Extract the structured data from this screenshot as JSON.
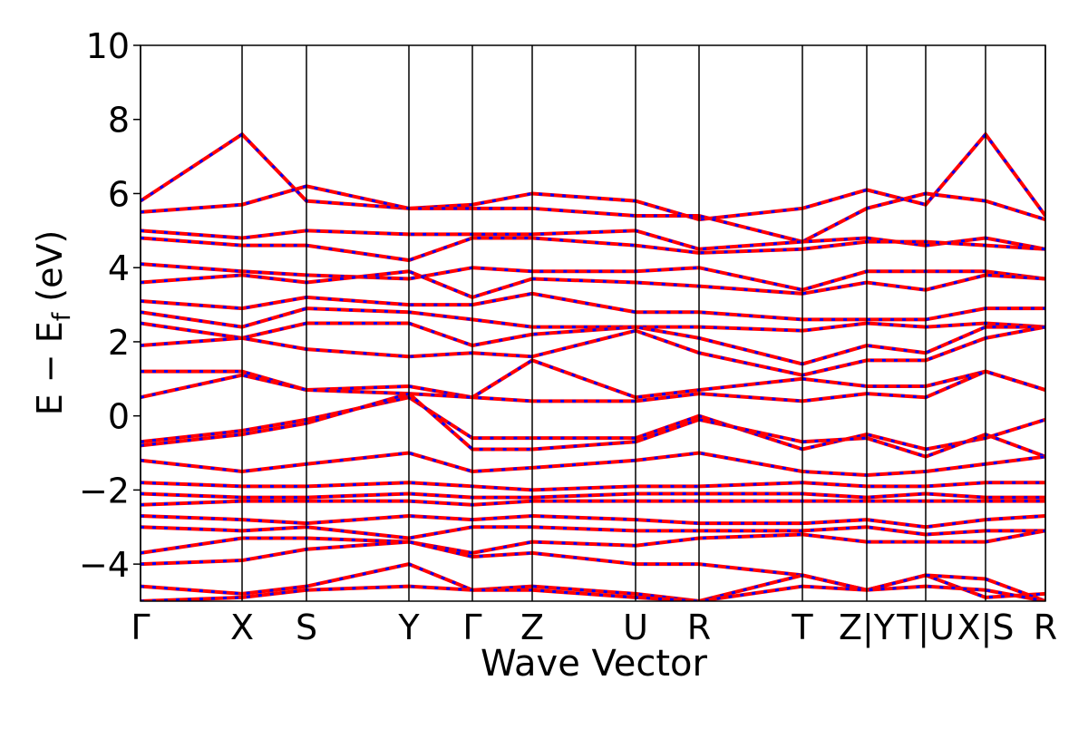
{
  "chart_data": {
    "type": "line",
    "xlabel": "Wave Vector",
    "ylabel_parts": [
      "E − E",
      "f",
      "(eV)"
    ],
    "ylim": [
      -5,
      10
    ],
    "yticks": [
      {
        "value": -4,
        "label": "−4"
      },
      {
        "value": -2,
        "label": "−2"
      },
      0,
      2,
      4,
      6,
      8,
      10
    ],
    "xlim": [
      0,
      9.98
    ],
    "xticks": [
      {
        "value": 0,
        "label": "Γ"
      },
      {
        "value": 1.12,
        "label": "X"
      },
      {
        "value": 1.83,
        "label": "S"
      },
      {
        "value": 2.96,
        "label": "Y"
      },
      {
        "value": 3.66,
        "label": "Γ"
      },
      {
        "value": 4.32,
        "label": "Z"
      },
      {
        "value": 5.46,
        "label": "U"
      },
      {
        "value": 6.16,
        "label": "R"
      },
      {
        "value": 7.3,
        "label": "T"
      },
      {
        "value": 8.01,
        "label": "Z|Y"
      },
      {
        "value": 8.66,
        "label": "T|U"
      },
      {
        "value": 9.32,
        "label": "X|S"
      },
      {
        "value": 9.98,
        "label": "R"
      }
    ],
    "x": [
      0,
      1.12,
      1.83,
      2.96,
      3.66,
      4.32,
      5.46,
      6.16,
      7.3,
      8.01,
      8.66,
      9.32,
      9.98
    ],
    "color": "#ff0000",
    "dash_color": "#0000ff",
    "bands": [
      {
        "values": [
          5.8,
          7.6,
          5.8,
          5.6,
          5.7,
          6.0,
          5.8,
          5.3,
          5.6,
          6.1,
          5.7,
          7.6,
          5.4
        ]
      },
      {
        "values": [
          5.5,
          5.7,
          6.2,
          5.6,
          5.6,
          5.6,
          5.4,
          5.4,
          4.7,
          5.6,
          6.0,
          5.8,
          5.3
        ]
      },
      {
        "values": [
          5.0,
          4.8,
          5.0,
          4.9,
          4.9,
          4.9,
          5.0,
          4.5,
          4.7,
          4.8,
          4.6,
          4.8,
          4.5
        ]
      },
      {
        "values": [
          4.8,
          4.6,
          4.6,
          4.2,
          4.8,
          4.8,
          4.6,
          4.4,
          4.5,
          4.7,
          4.7,
          4.6,
          4.5
        ]
      },
      {
        "values": [
          4.1,
          3.9,
          3.8,
          3.7,
          4.0,
          3.9,
          3.9,
          4.0,
          3.4,
          3.9,
          3.9,
          3.9,
          3.7
        ]
      },
      {
        "values": [
          3.6,
          3.8,
          3.6,
          3.9,
          3.2,
          3.7,
          3.6,
          3.5,
          3.3,
          3.6,
          3.4,
          3.8,
          3.7
        ]
      },
      {
        "values": [
          3.1,
          2.9,
          3.2,
          3.0,
          3.0,
          3.3,
          2.8,
          2.8,
          2.6,
          2.6,
          2.6,
          2.9,
          2.9
        ]
      },
      {
        "values": [
          2.8,
          2.4,
          2.9,
          2.8,
          2.6,
          2.4,
          2.4,
          2.4,
          2.3,
          2.5,
          2.4,
          2.5,
          2.4
        ]
      },
      {
        "values": [
          2.5,
          2.1,
          2.5,
          2.5,
          1.9,
          2.2,
          2.4,
          2.1,
          1.4,
          1.9,
          1.7,
          2.4,
          2.4
        ]
      },
      {
        "values": [
          1.9,
          2.1,
          1.8,
          1.6,
          1.7,
          1.6,
          2.3,
          1.7,
          1.1,
          1.5,
          1.5,
          2.1,
          2.4
        ]
      },
      {
        "values": [
          1.2,
          1.2,
          0.7,
          0.8,
          0.5,
          1.5,
          0.5,
          0.7,
          1.0,
          0.8,
          0.8,
          1.2,
          0.7
        ]
      },
      {
        "values": [
          0.5,
          1.1,
          0.7,
          0.6,
          0.5,
          0.4,
          0.4,
          0.6,
          0.4,
          0.6,
          0.5,
          1.2,
          0.7
        ]
      },
      {
        "values": [
          -0.7,
          -0.4,
          -0.1,
          0.5,
          -0.6,
          -0.6,
          -0.6,
          0.0,
          -0.9,
          -0.5,
          -0.9,
          -0.6,
          -0.1
        ]
      },
      {
        "values": [
          -0.8,
          -0.5,
          -0.2,
          0.6,
          -0.9,
          -0.9,
          -0.7,
          -0.1,
          -0.7,
          -0.6,
          -1.1,
          -0.5,
          -1.1
        ]
      },
      {
        "values": [
          -1.2,
          -1.5,
          -1.3,
          -1.0,
          -1.5,
          -1.4,
          -1.2,
          -1.0,
          -1.5,
          -1.6,
          -1.5,
          -1.3,
          -1.1
        ]
      },
      {
        "values": [
          -1.8,
          -1.9,
          -1.9,
          -1.8,
          -1.9,
          -2.0,
          -1.9,
          -1.9,
          -1.8,
          -1.9,
          -1.9,
          -1.8,
          -1.8
        ]
      },
      {
        "values": [
          -2.1,
          -2.2,
          -2.2,
          -2.1,
          -2.2,
          -2.2,
          -2.1,
          -2.1,
          -2.1,
          -2.2,
          -2.1,
          -2.2,
          -2.2
        ]
      },
      {
        "values": [
          -2.4,
          -2.3,
          -2.3,
          -2.3,
          -2.4,
          -2.3,
          -2.3,
          -2.3,
          -2.3,
          -2.3,
          -2.3,
          -2.3,
          -2.3
        ]
      },
      {
        "values": [
          -2.7,
          -2.8,
          -2.9,
          -2.7,
          -2.8,
          -2.7,
          -2.8,
          -2.9,
          -2.9,
          -2.8,
          -3.0,
          -2.8,
          -2.7
        ]
      },
      {
        "values": [
          -3.0,
          -3.1,
          -3.0,
          -3.3,
          -3.0,
          -3.0,
          -3.1,
          -3.1,
          -3.1,
          -3.0,
          -3.2,
          -3.1,
          -3.1
        ]
      },
      {
        "values": [
          -3.7,
          -3.3,
          -3.3,
          -3.4,
          -3.7,
          -3.4,
          -3.5,
          -3.3,
          -3.2,
          -3.4,
          -3.4,
          -3.4,
          -3.1
        ]
      },
      {
        "values": [
          -4.0,
          -3.9,
          -3.6,
          -3.4,
          -3.8,
          -3.7,
          -4.0,
          -4.0,
          -4.3,
          -4.7,
          -4.3,
          -4.9,
          -4.8
        ]
      },
      {
        "values": [
          -4.6,
          -4.8,
          -4.6,
          -4.0,
          -4.7,
          -4.6,
          -4.8,
          -5.0,
          -4.3,
          -4.7,
          -4.3,
          -4.4,
          -5.0
        ]
      },
      {
        "values": [
          -5.0,
          -4.9,
          -4.7,
          -4.6,
          -4.7,
          -4.7,
          -4.9,
          -5.0,
          -4.6,
          -4.7,
          -4.6,
          -4.7,
          -5.0
        ]
      }
    ]
  }
}
